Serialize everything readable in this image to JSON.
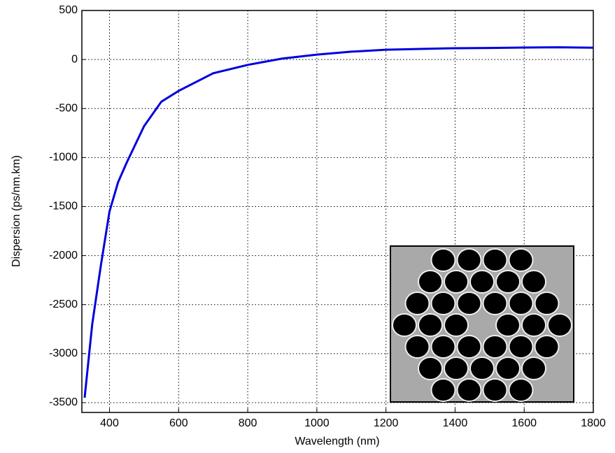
{
  "chart_data": {
    "type": "line",
    "x_label": "Wavelength (nm)",
    "y_label": "Dispersion (ps/nm.km)",
    "x": [
      328,
      350,
      375,
      400,
      425,
      450,
      500,
      550,
      600,
      700,
      800,
      900,
      1000,
      1100,
      1200,
      1300,
      1400,
      1500,
      1600,
      1700,
      1800
    ],
    "series": [
      {
        "color": "#0000dd",
        "values": [
          -3450,
          -2700,
          -2100,
          -1550,
          -1250,
          -1050,
          -680,
          -430,
          -320,
          -140,
          -55,
          10,
          50,
          80,
          100,
          108,
          115,
          118,
          122,
          125,
          120
        ]
      }
    ],
    "xlim": [
      320,
      1800
    ],
    "ylim": [
      -3600,
      500
    ],
    "xticks": [
      400,
      600,
      800,
      1000,
      1200,
      1400,
      1600,
      1800
    ],
    "yticks": [
      -3500,
      -3000,
      -2500,
      -2000,
      -1500,
      -1000,
      -500,
      0,
      500
    ],
    "grid": true
  }
}
